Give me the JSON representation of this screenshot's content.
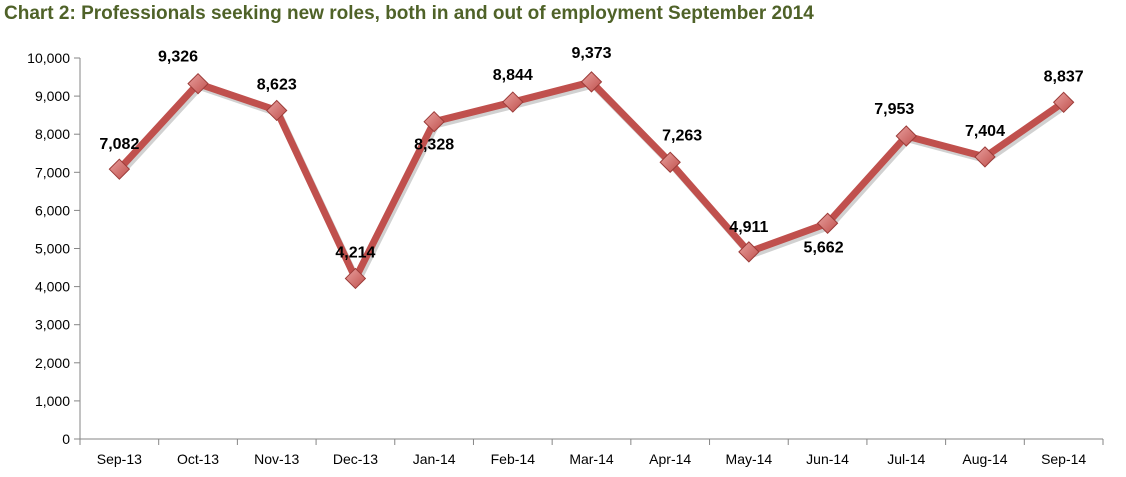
{
  "chart_data": {
    "type": "line",
    "title": "Chart 2: Professionals seeking new roles, both in and out of employment September 2014",
    "xlabel": "",
    "ylabel": "",
    "categories": [
      "Sep-13",
      "Oct-13",
      "Nov-13",
      "Dec-13",
      "Jan-14",
      "Feb-14",
      "Mar-14",
      "Apr-14",
      "May-14",
      "Jun-14",
      "Jul-14",
      "Aug-14",
      "Sep-14"
    ],
    "series": [
      {
        "values": [
          7082,
          9326,
          8623,
          4214,
          8328,
          8844,
          9373,
          7263,
          4911,
          5662,
          7953,
          7404,
          8837
        ]
      }
    ],
    "data_labels": [
      "7,082",
      "9,326",
      "8,623",
      "4,214",
      "8,328",
      "8,844",
      "9,373",
      "7,263",
      "4,911",
      "5,662",
      "7,953",
      "7,404",
      "8,837"
    ],
    "ylim": [
      0,
      10000
    ],
    "y_ticks": [
      "0",
      "1,000",
      "2,000",
      "3,000",
      "4,000",
      "5,000",
      "6,000",
      "7,000",
      "8,000",
      "9,000",
      "10,000"
    ],
    "grid": false,
    "legend": "none",
    "colors": {
      "line": "#c0504d",
      "marker": "#c0504d",
      "marker_highlight": "#e8a09e",
      "title": "#4f6228",
      "axis": "#868686"
    }
  }
}
